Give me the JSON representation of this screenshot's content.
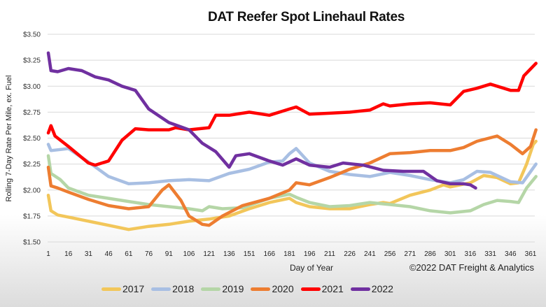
{
  "chart_data": {
    "type": "line",
    "title": "DAT Reefer Spot Linehaul Rates",
    "xlabel": "Day of Year",
    "ylabel": "Rolling 7-Day Rate Per Mile, ex. Fuel",
    "credit": "©2022 DAT Freight & Analytics",
    "xlim": [
      1,
      365
    ],
    "ylim": [
      1.5,
      3.5
    ],
    "grid": true,
    "legend_position": "bottom",
    "x_ticks": [
      "1",
      "16",
      "31",
      "46",
      "61",
      "76",
      "91",
      "106",
      "121",
      "136",
      "151",
      "166",
      "181",
      "196",
      "211",
      "226",
      "241",
      "256",
      "271",
      "286",
      "301",
      "316",
      "331",
      "346",
      "361"
    ],
    "y_ticks": [
      "$1.50",
      "$1.75",
      "$2.00",
      "$2.25",
      "$2.50",
      "$2.75",
      "$3.00",
      "$3.25",
      "$3.50"
    ],
    "y_tick_values": [
      1.5,
      1.75,
      2.0,
      2.25,
      2.5,
      2.75,
      3.0,
      3.25,
      3.5
    ],
    "series": [
      {
        "name": "2017",
        "color": "#f2c65a",
        "points": [
          [
            1,
            1.95
          ],
          [
            3,
            1.8
          ],
          [
            8,
            1.76
          ],
          [
            16,
            1.74
          ],
          [
            31,
            1.7
          ],
          [
            46,
            1.66
          ],
          [
            61,
            1.62
          ],
          [
            76,
            1.65
          ],
          [
            91,
            1.67
          ],
          [
            106,
            1.7
          ],
          [
            121,
            1.72
          ],
          [
            136,
            1.75
          ],
          [
            151,
            1.82
          ],
          [
            166,
            1.88
          ],
          [
            181,
            1.92
          ],
          [
            186,
            1.88
          ],
          [
            196,
            1.84
          ],
          [
            211,
            1.82
          ],
          [
            226,
            1.82
          ],
          [
            241,
            1.86
          ],
          [
            251,
            1.88
          ],
          [
            256,
            1.87
          ],
          [
            271,
            1.95
          ],
          [
            286,
            2.0
          ],
          [
            296,
            2.05
          ],
          [
            301,
            2.03
          ],
          [
            316,
            2.07
          ],
          [
            326,
            2.14
          ],
          [
            336,
            2.12
          ],
          [
            346,
            2.06
          ],
          [
            352,
            2.07
          ],
          [
            358,
            2.25
          ],
          [
            363,
            2.44
          ],
          [
            365,
            2.47
          ]
        ]
      },
      {
        "name": "2018",
        "color": "#a8bfe3",
        "points": [
          [
            1,
            2.44
          ],
          [
            3,
            2.38
          ],
          [
            10,
            2.39
          ],
          [
            16,
            2.4
          ],
          [
            31,
            2.27
          ],
          [
            46,
            2.13
          ],
          [
            61,
            2.06
          ],
          [
            76,
            2.07
          ],
          [
            91,
            2.09
          ],
          [
            106,
            2.1
          ],
          [
            121,
            2.09
          ],
          [
            136,
            2.16
          ],
          [
            151,
            2.2
          ],
          [
            166,
            2.27
          ],
          [
            176,
            2.28
          ],
          [
            181,
            2.35
          ],
          [
            186,
            2.4
          ],
          [
            196,
            2.26
          ],
          [
            211,
            2.18
          ],
          [
            226,
            2.15
          ],
          [
            241,
            2.13
          ],
          [
            256,
            2.17
          ],
          [
            271,
            2.14
          ],
          [
            286,
            2.1
          ],
          [
            301,
            2.07
          ],
          [
            311,
            2.1
          ],
          [
            321,
            2.18
          ],
          [
            331,
            2.17
          ],
          [
            346,
            2.08
          ],
          [
            355,
            2.07
          ],
          [
            365,
            2.25
          ]
        ]
      },
      {
        "name": "2019",
        "color": "#b5d6a7",
        "points": [
          [
            1,
            2.33
          ],
          [
            3,
            2.16
          ],
          [
            10,
            2.1
          ],
          [
            16,
            2.02
          ],
          [
            31,
            1.95
          ],
          [
            46,
            1.92
          ],
          [
            61,
            1.89
          ],
          [
            76,
            1.86
          ],
          [
            91,
            1.84
          ],
          [
            106,
            1.82
          ],
          [
            116,
            1.8
          ],
          [
            121,
            1.84
          ],
          [
            131,
            1.82
          ],
          [
            146,
            1.83
          ],
          [
            166,
            1.92
          ],
          [
            181,
            1.96
          ],
          [
            186,
            1.93
          ],
          [
            196,
            1.88
          ],
          [
            211,
            1.84
          ],
          [
            226,
            1.85
          ],
          [
            241,
            1.88
          ],
          [
            256,
            1.86
          ],
          [
            271,
            1.84
          ],
          [
            286,
            1.8
          ],
          [
            301,
            1.78
          ],
          [
            316,
            1.8
          ],
          [
            326,
            1.86
          ],
          [
            336,
            1.9
          ],
          [
            346,
            1.89
          ],
          [
            352,
            1.88
          ],
          [
            358,
            2.02
          ],
          [
            365,
            2.13
          ]
        ]
      },
      {
        "name": "2020",
        "color": "#ed7d31",
        "points": [
          [
            1,
            2.22
          ],
          [
            3,
            2.04
          ],
          [
            8,
            2.02
          ],
          [
            16,
            1.98
          ],
          [
            31,
            1.91
          ],
          [
            46,
            1.85
          ],
          [
            61,
            1.82
          ],
          [
            76,
            1.84
          ],
          [
            86,
            2.0
          ],
          [
            91,
            2.05
          ],
          [
            100,
            1.9
          ],
          [
            106,
            1.75
          ],
          [
            116,
            1.67
          ],
          [
            121,
            1.66
          ],
          [
            131,
            1.75
          ],
          [
            146,
            1.85
          ],
          [
            166,
            1.92
          ],
          [
            181,
            2.0
          ],
          [
            186,
            2.07
          ],
          [
            196,
            2.05
          ],
          [
            211,
            2.12
          ],
          [
            226,
            2.2
          ],
          [
            241,
            2.26
          ],
          [
            256,
            2.35
          ],
          [
            271,
            2.36
          ],
          [
            286,
            2.38
          ],
          [
            301,
            2.38
          ],
          [
            311,
            2.41
          ],
          [
            321,
            2.47
          ],
          [
            336,
            2.52
          ],
          [
            346,
            2.44
          ],
          [
            355,
            2.35
          ],
          [
            361,
            2.42
          ],
          [
            365,
            2.58
          ]
        ]
      },
      {
        "name": "2021",
        "color": "#ff0000",
        "points": [
          [
            1,
            2.55
          ],
          [
            3,
            2.62
          ],
          [
            6,
            2.52
          ],
          [
            16,
            2.42
          ],
          [
            31,
            2.26
          ],
          [
            36,
            2.24
          ],
          [
            46,
            2.28
          ],
          [
            56,
            2.48
          ],
          [
            66,
            2.59
          ],
          [
            76,
            2.58
          ],
          [
            91,
            2.58
          ],
          [
            96,
            2.6
          ],
          [
            106,
            2.58
          ],
          [
            121,
            2.6
          ],
          [
            126,
            2.72
          ],
          [
            136,
            2.72
          ],
          [
            151,
            2.75
          ],
          [
            166,
            2.72
          ],
          [
            181,
            2.78
          ],
          [
            186,
            2.8
          ],
          [
            196,
            2.73
          ],
          [
            211,
            2.74
          ],
          [
            226,
            2.75
          ],
          [
            241,
            2.77
          ],
          [
            251,
            2.83
          ],
          [
            256,
            2.81
          ],
          [
            271,
            2.83
          ],
          [
            286,
            2.84
          ],
          [
            301,
            2.82
          ],
          [
            311,
            2.95
          ],
          [
            321,
            2.98
          ],
          [
            331,
            3.02
          ],
          [
            346,
            2.96
          ],
          [
            352,
            2.96
          ],
          [
            356,
            3.1
          ],
          [
            365,
            3.22
          ]
        ]
      },
      {
        "name": "2022",
        "color": "#7030a0",
        "points": [
          [
            1,
            3.32
          ],
          [
            3,
            3.15
          ],
          [
            8,
            3.14
          ],
          [
            16,
            3.17
          ],
          [
            26,
            3.15
          ],
          [
            36,
            3.09
          ],
          [
            46,
            3.06
          ],
          [
            56,
            3.0
          ],
          [
            66,
            2.96
          ],
          [
            76,
            2.78
          ],
          [
            91,
            2.65
          ],
          [
            106,
            2.58
          ],
          [
            116,
            2.45
          ],
          [
            126,
            2.37
          ],
          [
            136,
            2.22
          ],
          [
            141,
            2.33
          ],
          [
            151,
            2.35
          ],
          [
            166,
            2.28
          ],
          [
            176,
            2.24
          ],
          [
            186,
            2.3
          ],
          [
            196,
            2.24
          ],
          [
            211,
            2.22
          ],
          [
            221,
            2.26
          ],
          [
            236,
            2.24
          ],
          [
            251,
            2.19
          ],
          [
            266,
            2.18
          ],
          [
            281,
            2.18
          ],
          [
            291,
            2.09
          ],
          [
            301,
            2.06
          ],
          [
            311,
            2.06
          ],
          [
            316,
            2.05
          ],
          [
            320,
            2.02
          ]
        ]
      }
    ]
  }
}
